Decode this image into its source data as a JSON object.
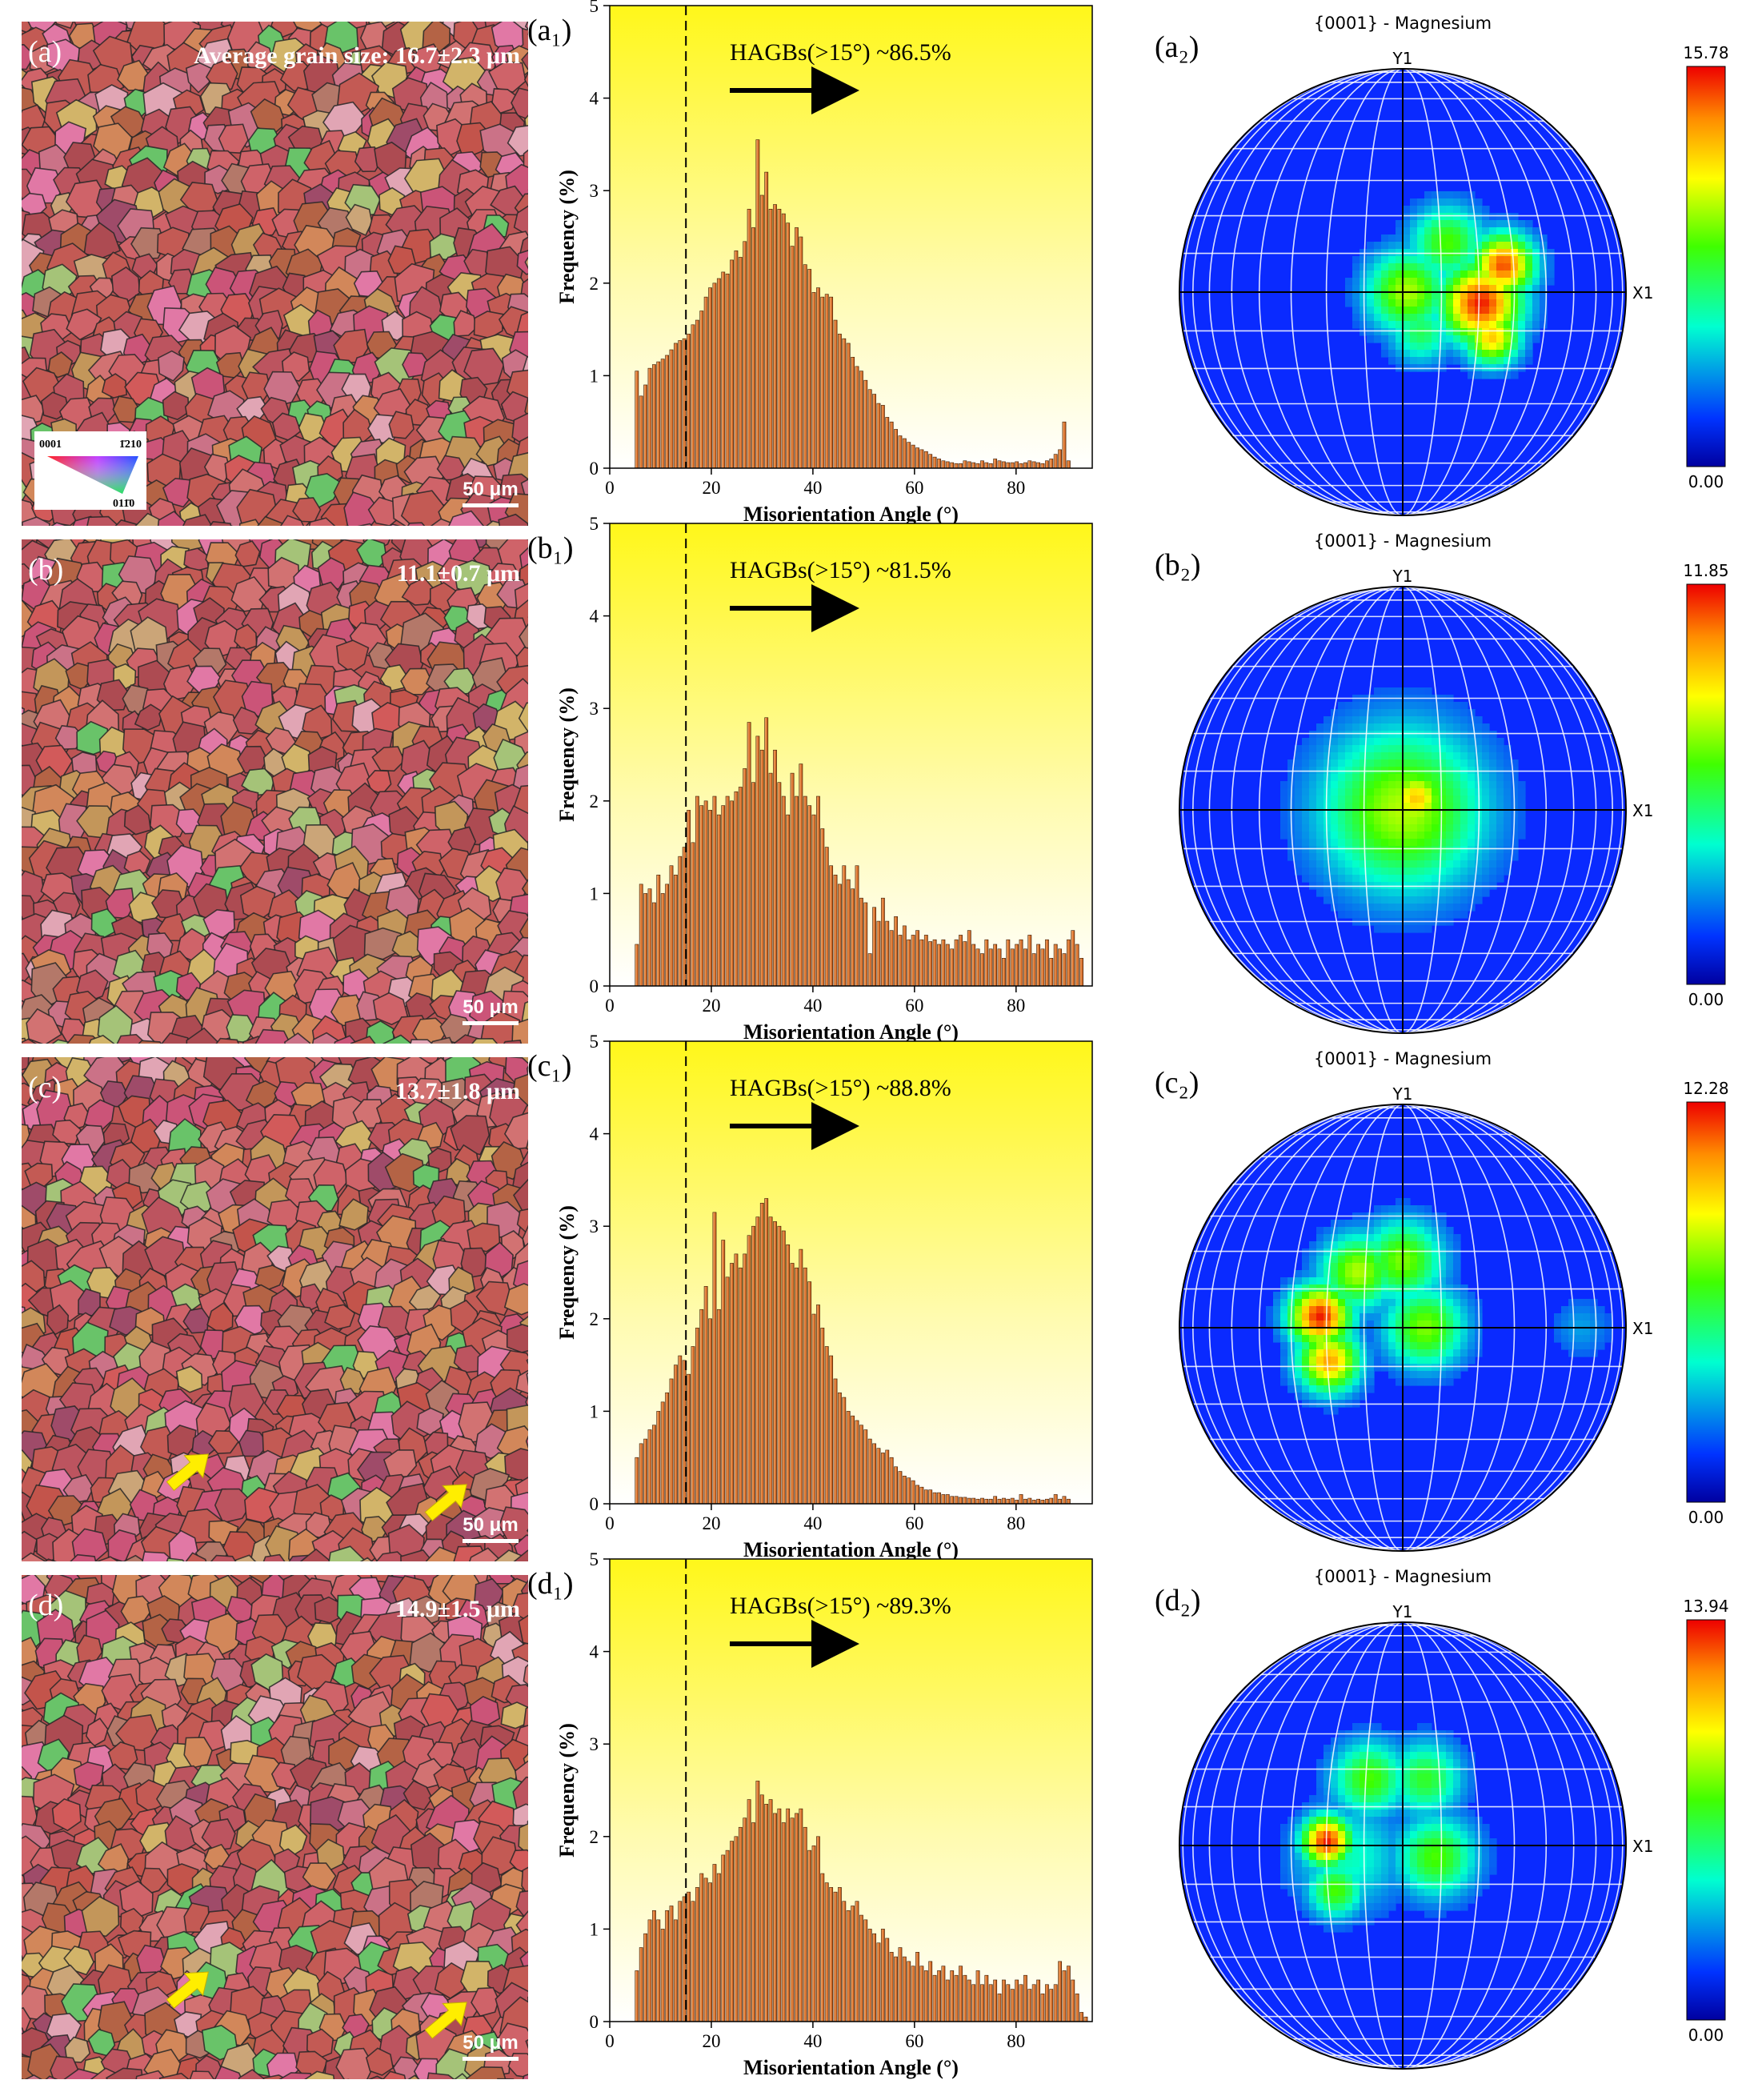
{
  "figure": {
    "colors": {
      "grain_base": "#b84a4a",
      "grain_boundary": "#1a1a1a",
      "bar_top": "#f0a060",
      "bar_bottom": "#c05a1a",
      "panel_bg_top": "#fff81e",
      "panel_bg_bottom": "#ffffff",
      "pf_background": "#0a2aff",
      "arrow_yellow": "#ffee00"
    },
    "ipf_key": {
      "corner_0001": "0001",
      "corner_1210": "1̄210",
      "corner_0110": "011̄0"
    },
    "rows": [
      {
        "map_label": "(a)",
        "grain_size": "Average grain size: 16.7±2.3 μm",
        "scale_bar": "50 μm",
        "map_arrows": 0,
        "show_ipf_key": true,
        "hist_label": "(a₁)",
        "pf_label": "(a₂)"
      },
      {
        "map_label": "(b)",
        "grain_size": "11.1±0.7 μm",
        "scale_bar": "50 μm",
        "map_arrows": 0,
        "show_ipf_key": false,
        "hist_label": "(b₁)",
        "pf_label": "(b₂)"
      },
      {
        "map_label": "(c)",
        "grain_size": "13.7±1.8 μm",
        "scale_bar": "50 μm",
        "map_arrows": 2,
        "show_ipf_key": false,
        "hist_label": "(c₁)",
        "pf_label": "(c₂)"
      },
      {
        "map_label": "(d)",
        "grain_size": "14.9±1.5 μm",
        "scale_bar": "50 μm",
        "map_arrows": 2,
        "show_ipf_key": false,
        "hist_label": "(d₁)",
        "pf_label": "(d₂)"
      }
    ]
  },
  "chart_data": [
    {
      "type": "bar",
      "panel": "a1",
      "xlabel": "Misorientation Angle (°)",
      "ylabel": "Frequency (%)",
      "xlim": [
        0,
        95
      ],
      "ylim": [
        0,
        5
      ],
      "xticks": [
        0,
        20,
        40,
        60,
        80
      ],
      "yticks": [
        0,
        1,
        2,
        3,
        4,
        5
      ],
      "threshold_deg": 15,
      "annotation": "HAGBs(>15°) ~86.5%",
      "bin_width": 0.85,
      "x": [
        5,
        5.85,
        6.7,
        7.55,
        8.4,
        9.25,
        10.1,
        10.95,
        11.8,
        12.65,
        13.5,
        14.35,
        15.2,
        16.05,
        16.9,
        17.75,
        18.6,
        19.45,
        20.3,
        21.15,
        22,
        22.85,
        23.7,
        24.55,
        25.4,
        26.25,
        27.1,
        27.95,
        28.8,
        29.65,
        30.5,
        31.35,
        32.2,
        33.05,
        33.9,
        34.75,
        35.6,
        36.45,
        37.3,
        38.15,
        39,
        39.85,
        40.7,
        41.55,
        42.4,
        43.25,
        44.1,
        44.95,
        45.8,
        46.65,
        47.5,
        48.35,
        49.2,
        50.05,
        50.9,
        51.75,
        52.6,
        53.45,
        54.3,
        55.15,
        56,
        56.85,
        57.7,
        58.55,
        59.4,
        60.25,
        61.1,
        61.95,
        62.8,
        63.65,
        64.5,
        65.35,
        66.2,
        67.05,
        67.9,
        68.75,
        69.6,
        70.45,
        71.3,
        72.15,
        73,
        73.85,
        74.7,
        75.55,
        76.4,
        77.25,
        78.1,
        78.95,
        79.8,
        80.65,
        81.5,
        82.35,
        83.2,
        84.05,
        84.9,
        85.75,
        86.6,
        87.45,
        88.3,
        89.15,
        90
      ],
      "values": [
        1.05,
        0.78,
        0.9,
        1.08,
        1.12,
        1.15,
        1.18,
        1.22,
        1.28,
        1.35,
        1.38,
        1.4,
        1.45,
        1.55,
        1.6,
        1.7,
        1.85,
        1.95,
        2.0,
        2.05,
        2.12,
        2.1,
        2.25,
        2.35,
        2.28,
        2.45,
        2.8,
        2.6,
        3.55,
        2.95,
        3.2,
        2.8,
        2.85,
        2.8,
        2.75,
        2.65,
        2.4,
        2.6,
        2.5,
        2.2,
        2.15,
        1.9,
        1.95,
        1.85,
        1.88,
        1.85,
        1.6,
        1.45,
        1.4,
        1.35,
        1.2,
        1.1,
        1.05,
        0.95,
        0.85,
        0.8,
        0.7,
        0.68,
        0.55,
        0.5,
        0.42,
        0.35,
        0.32,
        0.28,
        0.25,
        0.22,
        0.2,
        0.18,
        0.15,
        0.12,
        0.1,
        0.08,
        0.07,
        0.06,
        0.05,
        0.05,
        0.08,
        0.07,
        0.06,
        0.05,
        0.08,
        0.06,
        0.05,
        0.1,
        0.08,
        0.07,
        0.06,
        0.06,
        0.07,
        0.05,
        0.06,
        0.08,
        0.07,
        0.06,
        0.05,
        0.08,
        0.1,
        0.15,
        0.2,
        0.5,
        0.08
      ]
    },
    {
      "type": "bar",
      "panel": "b1",
      "xlabel": "Misorientation Angle (°)",
      "ylabel": "Frequency (%)",
      "xlim": [
        0,
        95
      ],
      "ylim": [
        0,
        5
      ],
      "xticks": [
        0,
        20,
        40,
        60,
        80
      ],
      "yticks": [
        0,
        1,
        2,
        3,
        4,
        5
      ],
      "threshold_deg": 15,
      "annotation": "HAGBs(>15°) ~81.5%",
      "bin_width": 0.85,
      "x": [
        5,
        5.85,
        6.7,
        7.55,
        8.4,
        9.25,
        10.1,
        10.95,
        11.8,
        12.65,
        13.5,
        14.35,
        15.2,
        16.05,
        16.9,
        17.75,
        18.6,
        19.45,
        20.3,
        21.15,
        22,
        22.85,
        23.7,
        24.55,
        25.4,
        26.25,
        27.1,
        27.95,
        28.8,
        29.65,
        30.5,
        31.35,
        32.2,
        33.05,
        33.9,
        34.75,
        35.6,
        36.45,
        37.3,
        38.15,
        39,
        39.85,
        40.7,
        41.55,
        42.4,
        43.25,
        44.1,
        44.95,
        45.8,
        46.65,
        47.5,
        48.35,
        49.2,
        50.05,
        50.9,
        51.75,
        52.6,
        53.45,
        54.3,
        55.15,
        56,
        56.85,
        57.7,
        58.55,
        59.4,
        60.25,
        61.1,
        61.95,
        62.8,
        63.65,
        64.5,
        65.35,
        66.2,
        67.05,
        67.9,
        68.75,
        69.6,
        70.45,
        71.3,
        72.15,
        73,
        73.85,
        74.7,
        75.55,
        76.4,
        77.25,
        78.1,
        78.95,
        79.8,
        80.65,
        81.5,
        82.35,
        83.2,
        84.05,
        84.9,
        85.75,
        86.6,
        87.45,
        88.3,
        89.15,
        90,
        90.85,
        91.7,
        92.55
      ],
      "values": [
        0.45,
        1.1,
        1.0,
        1.05,
        0.9,
        1.2,
        1.0,
        1.1,
        1.3,
        1.2,
        1.4,
        1.5,
        1.9,
        1.55,
        2.05,
        1.95,
        2.0,
        1.9,
        2.05,
        1.85,
        1.95,
        2.05,
        2.0,
        2.1,
        2.15,
        2.35,
        2.85,
        2.2,
        2.7,
        2.55,
        2.9,
        2.3,
        2.55,
        2.2,
        2.05,
        1.85,
        2.3,
        2.05,
        2.4,
        2.05,
        1.95,
        1.85,
        2.05,
        1.7,
        1.5,
        1.3,
        1.2,
        1.1,
        1.3,
        1.15,
        1.05,
        1.3,
        0.95,
        0.9,
        0.35,
        0.85,
        0.7,
        0.95,
        0.7,
        0.6,
        0.75,
        0.55,
        0.65,
        0.5,
        0.55,
        0.6,
        0.5,
        0.55,
        0.48,
        0.5,
        0.45,
        0.5,
        0.45,
        0.4,
        0.5,
        0.55,
        0.48,
        0.6,
        0.45,
        0.4,
        0.35,
        0.5,
        0.4,
        0.45,
        0.4,
        0.3,
        0.5,
        0.4,
        0.45,
        0.5,
        0.4,
        0.55,
        0.35,
        0.45,
        0.4,
        0.5,
        0.3,
        0.45,
        0.4,
        0.35,
        0.5,
        0.6,
        0.45,
        0.3
      ]
    },
    {
      "type": "bar",
      "panel": "c1",
      "xlabel": "Misorientation Angle (°)",
      "ylabel": "Frequency (%)",
      "xlim": [
        0,
        95
      ],
      "ylim": [
        0,
        5
      ],
      "xticks": [
        0,
        20,
        40,
        60,
        80
      ],
      "yticks": [
        0,
        1,
        2,
        3,
        4,
        5
      ],
      "threshold_deg": 15,
      "annotation": "HAGBs(>15°) ~88.8%",
      "bin_width": 0.85,
      "x": [
        5,
        5.85,
        6.7,
        7.55,
        8.4,
        9.25,
        10.1,
        10.95,
        11.8,
        12.65,
        13.5,
        14.35,
        15.2,
        16.05,
        16.9,
        17.75,
        18.6,
        19.45,
        20.3,
        21.15,
        22,
        22.85,
        23.7,
        24.55,
        25.4,
        26.25,
        27.1,
        27.95,
        28.8,
        29.65,
        30.5,
        31.35,
        32.2,
        33.05,
        33.9,
        34.75,
        35.6,
        36.45,
        37.3,
        38.15,
        39,
        39.85,
        40.7,
        41.55,
        42.4,
        43.25,
        44.1,
        44.95,
        45.8,
        46.65,
        47.5,
        48.35,
        49.2,
        50.05,
        50.9,
        51.75,
        52.6,
        53.45,
        54.3,
        55.15,
        56,
        56.85,
        57.7,
        58.55,
        59.4,
        60.25,
        61.1,
        61.95,
        62.8,
        63.65,
        64.5,
        65.35,
        66.2,
        67.05,
        67.9,
        68.75,
        69.6,
        70.45,
        71.3,
        72.15,
        73,
        73.85,
        74.7,
        75.55,
        76.4,
        77.25,
        78.1,
        78.95,
        79.8,
        80.65,
        81.5,
        82.35,
        83.2,
        84.05,
        84.9,
        85.75,
        86.6,
        87.45,
        88.3,
        89.15,
        90
      ],
      "values": [
        0.5,
        0.65,
        0.7,
        0.8,
        0.85,
        1.0,
        1.1,
        1.2,
        1.35,
        1.5,
        1.6,
        1.55,
        1.4,
        1.7,
        1.9,
        2.1,
        2.35,
        2.0,
        3.15,
        2.1,
        2.85,
        2.45,
        2.6,
        2.7,
        2.55,
        2.7,
        2.9,
        3.0,
        3.1,
        3.25,
        3.3,
        3.1,
        3.05,
        3.0,
        2.95,
        2.8,
        2.6,
        2.55,
        2.75,
        2.55,
        2.4,
        2.05,
        2.15,
        1.9,
        1.7,
        1.6,
        1.35,
        1.2,
        1.15,
        1.0,
        0.95,
        0.9,
        0.85,
        0.8,
        0.7,
        0.65,
        0.6,
        0.55,
        0.58,
        0.5,
        0.4,
        0.35,
        0.3,
        0.28,
        0.25,
        0.2,
        0.18,
        0.15,
        0.15,
        0.12,
        0.12,
        0.1,
        0.1,
        0.08,
        0.08,
        0.07,
        0.07,
        0.06,
        0.06,
        0.05,
        0.06,
        0.05,
        0.05,
        0.08,
        0.05,
        0.06,
        0.05,
        0.06,
        0.04,
        0.1,
        0.05,
        0.06,
        0.04,
        0.05,
        0.04,
        0.05,
        0.06,
        0.1,
        0.05,
        0.08,
        0.05
      ]
    },
    {
      "type": "bar",
      "panel": "d1",
      "xlabel": "Misorientation Angle (°)",
      "ylabel": "Frequency (%)",
      "xlim": [
        0,
        95
      ],
      "ylim": [
        0,
        5
      ],
      "xticks": [
        0,
        20,
        40,
        60,
        80
      ],
      "yticks": [
        0,
        1,
        2,
        3,
        4,
        5
      ],
      "threshold_deg": 15,
      "annotation": "HAGBs(>15°) ~89.3%",
      "bin_width": 0.85,
      "x": [
        5,
        5.85,
        6.7,
        7.55,
        8.4,
        9.25,
        10.1,
        10.95,
        11.8,
        12.65,
        13.5,
        14.35,
        15.2,
        16.05,
        16.9,
        17.75,
        18.6,
        19.45,
        20.3,
        21.15,
        22,
        22.85,
        23.7,
        24.55,
        25.4,
        26.25,
        27.1,
        27.95,
        28.8,
        29.65,
        30.5,
        31.35,
        32.2,
        33.05,
        33.9,
        34.75,
        35.6,
        36.45,
        37.3,
        38.15,
        39,
        39.85,
        40.7,
        41.55,
        42.4,
        43.25,
        44.1,
        44.95,
        45.8,
        46.65,
        47.5,
        48.35,
        49.2,
        50.05,
        50.9,
        51.75,
        52.6,
        53.45,
        54.3,
        55.15,
        56,
        56.85,
        57.7,
        58.55,
        59.4,
        60.25,
        61.1,
        61.95,
        62.8,
        63.65,
        64.5,
        65.35,
        66.2,
        67.05,
        67.9,
        68.75,
        69.6,
        70.45,
        71.3,
        72.15,
        73,
        73.85,
        74.7,
        75.55,
        76.4,
        77.25,
        78.1,
        78.95,
        79.8,
        80.65,
        81.5,
        82.35,
        83.2,
        84.05,
        84.9,
        85.75,
        86.6,
        87.45,
        88.3,
        89.15,
        90,
        90.85,
        91.7,
        92.55,
        93.4
      ],
      "values": [
        0.55,
        0.8,
        0.95,
        1.1,
        1.2,
        1.1,
        1.0,
        1.2,
        1.25,
        1.1,
        1.3,
        1.35,
        1.4,
        1.3,
        1.45,
        1.6,
        1.55,
        1.5,
        1.7,
        1.6,
        1.8,
        1.85,
        1.95,
        2.0,
        2.1,
        2.2,
        2.4,
        2.15,
        2.6,
        2.45,
        2.35,
        2.4,
        2.25,
        2.3,
        2.15,
        2.3,
        2.2,
        2.25,
        2.3,
        2.1,
        1.85,
        1.9,
        2.0,
        1.6,
        1.5,
        1.45,
        1.4,
        1.45,
        1.3,
        1.2,
        1.25,
        1.3,
        1.15,
        1.1,
        1.0,
        0.95,
        0.85,
        1.0,
        0.9,
        0.75,
        0.7,
        0.8,
        0.7,
        0.65,
        0.6,
        0.75,
        0.6,
        0.55,
        0.65,
        0.5,
        0.55,
        0.6,
        0.45,
        0.55,
        0.5,
        0.6,
        0.5,
        0.45,
        0.4,
        0.55,
        0.4,
        0.5,
        0.4,
        0.45,
        0.3,
        0.45,
        0.4,
        0.35,
        0.45,
        0.4,
        0.5,
        0.35,
        0.4,
        0.45,
        0.3,
        0.4,
        0.35,
        0.4,
        0.65,
        0.55,
        0.6,
        0.45,
        0.3,
        0.1,
        0.05
      ]
    },
    {
      "type": "heatmap",
      "panel": "a2",
      "title": "{0001} - Magnesium",
      "axis_x": "X1",
      "axis_y": "Y1",
      "colorbar_max": "15.78",
      "colorbar_min": "0.00",
      "max_value": 15.78,
      "peaks": [
        {
          "u": 0.02,
          "v": 0.0,
          "s": 0.13,
          "a": 0.6
        },
        {
          "u": 0.35,
          "v": 0.05,
          "s": 0.13,
          "a": 0.95
        },
        {
          "u": 0.45,
          "v": -0.12,
          "s": 0.1,
          "a": 0.9
        },
        {
          "u": 0.4,
          "v": 0.2,
          "s": 0.09,
          "a": 0.75
        },
        {
          "u": 0.2,
          "v": -0.22,
          "s": 0.12,
          "a": 0.5
        },
        {
          "u": 0.08,
          "v": 0.18,
          "s": 0.1,
          "a": 0.4
        }
      ]
    },
    {
      "type": "heatmap",
      "panel": "b2",
      "title": "{0001} - Magnesium",
      "axis_x": "X1",
      "axis_y": "Y1",
      "colorbar_max": "11.85",
      "colorbar_min": "0.00",
      "max_value": 11.85,
      "peaks": [
        {
          "u": 0.0,
          "v": 0.0,
          "s": 0.26,
          "a": 0.6
        },
        {
          "u": 0.06,
          "v": -0.05,
          "s": 0.1,
          "a": 0.75
        },
        {
          "u": -0.05,
          "v": -0.05,
          "s": 0.08,
          "a": 0.45
        },
        {
          "u": 0.05,
          "v": 0.08,
          "s": 0.09,
          "a": 0.5
        }
      ]
    },
    {
      "type": "heatmap",
      "panel": "c2",
      "title": "{0001} - Magnesium",
      "axis_x": "X1",
      "axis_y": "Y1",
      "colorbar_max": "12.28",
      "colorbar_min": "0.00",
      "max_value": 12.28,
      "peaks": [
        {
          "u": -0.37,
          "v": -0.05,
          "s": 0.1,
          "a": 0.95
        },
        {
          "u": -0.33,
          "v": 0.15,
          "s": 0.1,
          "a": 0.8
        },
        {
          "u": -0.2,
          "v": -0.25,
          "s": 0.12,
          "a": 0.6
        },
        {
          "u": 0.0,
          "v": -0.3,
          "s": 0.13,
          "a": 0.55
        },
        {
          "u": 0.1,
          "v": 0.0,
          "s": 0.13,
          "a": 0.55
        },
        {
          "u": 0.8,
          "v": 0.0,
          "s": 0.1,
          "a": 0.15
        }
      ]
    },
    {
      "type": "heatmap",
      "panel": "d2",
      "title": "{0001} - Magnesium",
      "axis_x": "X1",
      "axis_y": "Y1",
      "colorbar_max": "13.94",
      "colorbar_min": "0.00",
      "max_value": 13.94,
      "peaks": [
        {
          "u": -0.34,
          "v": -0.02,
          "s": 0.08,
          "a": 0.95
        },
        {
          "u": -0.3,
          "v": 0.2,
          "s": 0.09,
          "a": 0.5
        },
        {
          "u": -0.15,
          "v": -0.3,
          "s": 0.12,
          "a": 0.5
        },
        {
          "u": 0.1,
          "v": -0.3,
          "s": 0.12,
          "a": 0.45
        },
        {
          "u": 0.15,
          "v": 0.05,
          "s": 0.13,
          "a": 0.5
        },
        {
          "u": -0.25,
          "v": 0.05,
          "s": 0.18,
          "a": 0.3
        }
      ]
    }
  ]
}
